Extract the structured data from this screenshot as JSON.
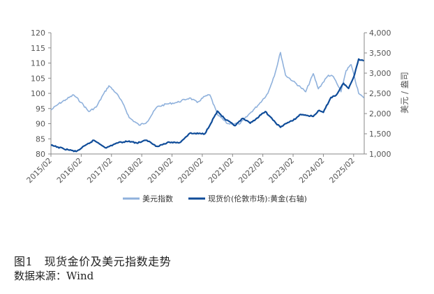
{
  "chart_data": {
    "type": "line",
    "title": "",
    "x_ticks": [
      "2015/02",
      "2016/02",
      "2017/02",
      "2018/02",
      "2019/02",
      "2020/02",
      "2021/02",
      "2022/02",
      "2023/02",
      "2024/02",
      "2025/02"
    ],
    "y_left": {
      "ticks": [
        "80",
        "85",
        "90",
        "95",
        "100",
        "105",
        "110",
        "115",
        "120"
      ],
      "ylim": [
        80,
        120
      ]
    },
    "y_right": {
      "label": "美元 / 盎司",
      "ticks": [
        "1,000",
        "1,500",
        "2,000",
        "2,500",
        "3,000",
        "3,500",
        "4,000"
      ],
      "ylim": [
        1000,
        4000
      ]
    },
    "legend_position": "bottom",
    "grid": false,
    "series": [
      {
        "name": "美元指数",
        "axis": "left",
        "color": "#8fb1dc",
        "x": [
          "2015/02",
          "2015/05",
          "2015/08",
          "2015/11",
          "2016/02",
          "2016/05",
          "2016/08",
          "2016/11",
          "2017/01",
          "2017/04",
          "2017/07",
          "2017/09",
          "2018/01",
          "2018/04",
          "2018/08",
          "2018/12",
          "2019/04",
          "2019/09",
          "2019/12",
          "2020/03",
          "2020/05",
          "2020/08",
          "2020/12",
          "2021/05",
          "2021/09",
          "2021/12",
          "2022/04",
          "2022/07",
          "2022/09",
          "2022/11",
          "2023/02",
          "2023/05",
          "2023/07",
          "2023/10",
          "2023/12",
          "2024/04",
          "2024/06",
          "2024/09",
          "2024/11",
          "2025/01",
          "2025/04",
          "2025/06"
        ],
        "values": [
          94.5,
          96.5,
          98,
          99.5,
          97,
          94,
          95.5,
          100,
          102.5,
          100,
          96,
          92,
          89.5,
          90.5,
          95.5,
          96.5,
          97,
          98.5,
          97,
          99,
          99.5,
          93,
          90,
          90,
          93.5,
          96,
          100,
          107,
          113.5,
          106,
          104,
          102,
          100.5,
          106.5,
          101.5,
          106,
          105.5,
          100.5,
          107.5,
          109.5,
          100,
          98.5
        ]
      },
      {
        "name": "现货价(伦敦市场):黄金(右轴)",
        "axis": "right",
        "color": "#0f4c99",
        "x": [
          "2015/02",
          "2015/07",
          "2015/12",
          "2016/07",
          "2016/12",
          "2017/04",
          "2017/09",
          "2017/12",
          "2018/04",
          "2018/08",
          "2019/01",
          "2019/05",
          "2019/09",
          "2020/03",
          "2020/08",
          "2020/11",
          "2021/03",
          "2021/06",
          "2021/09",
          "2022/03",
          "2022/06",
          "2022/09",
          "2022/11",
          "2023/02",
          "2023/05",
          "2023/10",
          "2023/12",
          "2024/02",
          "2024/05",
          "2024/07",
          "2024/10",
          "2024/12",
          "2025/02",
          "2025/04",
          "2025/06"
        ],
        "values": [
          1215,
          1130,
          1060,
          1340,
          1150,
          1270,
          1320,
          1270,
          1340,
          1190,
          1290,
          1280,
          1510,
          1500,
          2060,
          1860,
          1700,
          1880,
          1760,
          2050,
          1840,
          1660,
          1750,
          1830,
          1980,
          1930,
          2070,
          2030,
          2400,
          2450,
          2750,
          2620,
          2900,
          3350,
          3300
        ]
      }
    ]
  },
  "caption": {
    "title": "图1　现货金价及美元指数走势",
    "source": "数据来源：Wind"
  }
}
